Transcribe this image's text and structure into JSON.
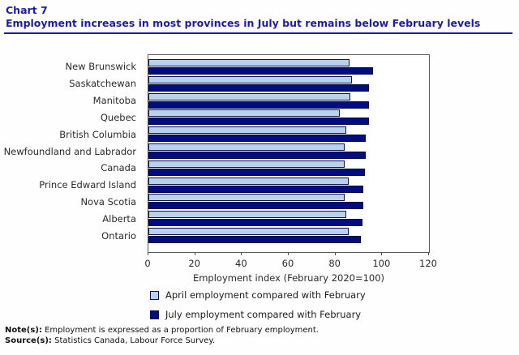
{
  "header": {
    "chart_label": "Chart 7",
    "title": "Employment increases in most provinces in July but remains below February levels",
    "title_color": "#1e1e9c"
  },
  "chart_data": {
    "type": "bar",
    "orientation": "horizontal",
    "title": "Employment increases in most provinces in July but remains below February levels",
    "categories": [
      "New Brunswick",
      "Saskatchewan",
      "Manitoba",
      "Quebec",
      "British Columbia",
      "Newfoundland and Labrador",
      "Canada",
      "Prince Edward Island",
      "Nova Scotia",
      "Alberta",
      "Ontario"
    ],
    "series": [
      {
        "name": "April employment compared with February",
        "color": "#b8d2ee",
        "border": "#10104a",
        "values": [
          86,
          87,
          86.5,
          82,
          84.5,
          84,
          84,
          85.5,
          84,
          84.5,
          85.5
        ]
      },
      {
        "name": "July employment compared with February",
        "color": "#000d82",
        "border": "#00063c",
        "values": [
          96,
          94.5,
          94.5,
          94.5,
          93,
          93,
          92.5,
          92,
          92,
          91.5,
          91
        ]
      }
    ],
    "xlabel": "Employment index (February 2020=100)",
    "ylabel": "",
    "xlim": [
      0,
      120
    ],
    "xticks": [
      0,
      20,
      40,
      60,
      80,
      100,
      120
    ],
    "grid": false,
    "legend_position": "bottom"
  },
  "notes": {
    "note_label": "Note(s):",
    "note_text": "Employment is expressed as a proportion of February employment.",
    "source_label": "Source(s):",
    "source_text": "Statistics Canada, Labour Force Survey."
  }
}
